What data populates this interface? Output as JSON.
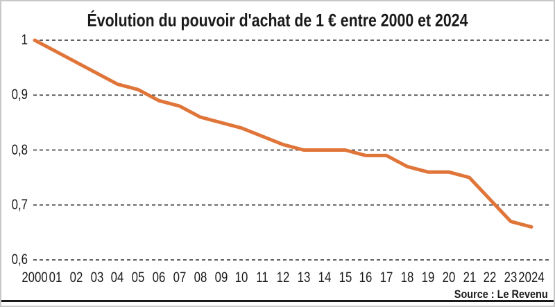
{
  "window": {
    "background": "#ffffff",
    "border_color": "#c8c8c8"
  },
  "chart": {
    "line_color": "#e07539",
    "gridline_color": "#4a4a4a",
    "text_color": "#1a1a1a",
    "rule_color": "#1a1a1a"
  },
  "chart_data": {
    "type": "line",
    "title": "Évolution du pouvoir d'achat de 1 € entre 2000 et 2024",
    "source": "Source : Le Revenu",
    "x": [
      2000,
      2001,
      2002,
      2003,
      2004,
      2005,
      2006,
      2007,
      2008,
      2009,
      2010,
      2011,
      2012,
      2013,
      2014,
      2015,
      2016,
      2017,
      2018,
      2019,
      2020,
      2021,
      2022,
      2023,
      2024
    ],
    "x_tick_labels": [
      "2000",
      "01",
      "02",
      "03",
      "04",
      "05",
      "06",
      "07",
      "08",
      "09",
      "10",
      "11",
      "12",
      "13",
      "14",
      "15",
      "16",
      "17",
      "18",
      "19",
      "20",
      "21",
      "22",
      "23",
      "2024"
    ],
    "series": [
      {
        "name": "Pouvoir d'achat de 1 €",
        "values": [
          1.0,
          0.98,
          0.96,
          0.94,
          0.92,
          0.91,
          0.89,
          0.88,
          0.86,
          0.85,
          0.84,
          0.825,
          0.81,
          0.8,
          0.8,
          0.8,
          0.79,
          0.79,
          0.77,
          0.76,
          0.76,
          0.75,
          0.71,
          0.67,
          0.66
        ]
      }
    ],
    "y_ticks": [
      1,
      0.9,
      0.8,
      0.7,
      0.6
    ],
    "y_tick_labels": [
      "1",
      "0,9",
      "0,8",
      "0,7",
      "0,6"
    ],
    "ylim": [
      0.6,
      1.0
    ],
    "xlabel": "",
    "ylabel": "",
    "grid": "horizontal-dashed",
    "legend": "none"
  }
}
